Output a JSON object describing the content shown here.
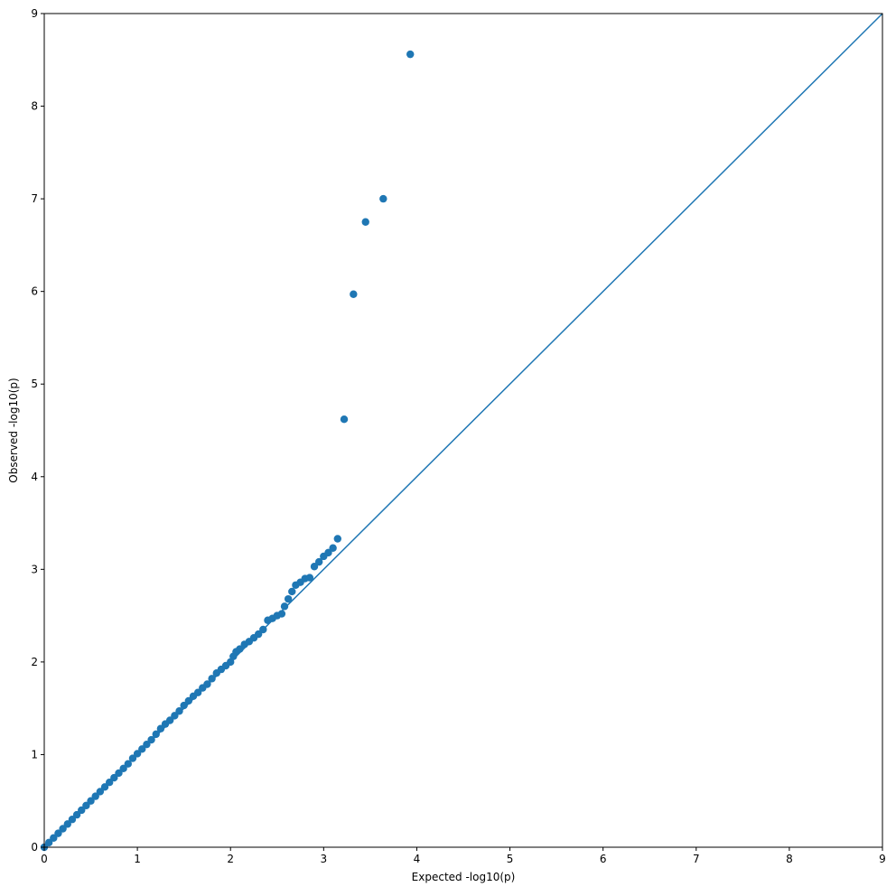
{
  "chart_data": {
    "type": "scatter",
    "title": "",
    "xlabel": "Expected -log10(p)",
    "ylabel": "Observed -log10(p)",
    "xlim": [
      0,
      9
    ],
    "ylim": [
      0,
      9
    ],
    "xticks": [
      "0",
      "1",
      "2",
      "3",
      "4",
      "5",
      "6",
      "7",
      "8",
      "9"
    ],
    "yticks": [
      "0",
      "1",
      "2",
      "3",
      "4",
      "5",
      "6",
      "7",
      "8",
      "9"
    ],
    "grid": false,
    "legend": "none",
    "colors": {
      "points": "#1f77b4",
      "reference_line": "#1f77b4"
    },
    "reference_line": {
      "from": [
        0,
        0
      ],
      "to": [
        9,
        9
      ]
    },
    "points": [
      [
        0.0,
        0.0
      ],
      [
        0.05,
        0.05
      ],
      [
        0.1,
        0.1
      ],
      [
        0.15,
        0.15
      ],
      [
        0.2,
        0.2
      ],
      [
        0.25,
        0.25
      ],
      [
        0.3,
        0.3
      ],
      [
        0.35,
        0.35
      ],
      [
        0.4,
        0.4
      ],
      [
        0.45,
        0.45
      ],
      [
        0.5,
        0.5
      ],
      [
        0.55,
        0.55
      ],
      [
        0.6,
        0.6
      ],
      [
        0.65,
        0.65
      ],
      [
        0.7,
        0.7
      ],
      [
        0.75,
        0.75
      ],
      [
        0.8,
        0.8
      ],
      [
        0.85,
        0.85
      ],
      [
        0.9,
        0.9
      ],
      [
        0.95,
        0.96
      ],
      [
        1.0,
        1.01
      ],
      [
        1.05,
        1.06
      ],
      [
        1.1,
        1.11
      ],
      [
        1.15,
        1.16
      ],
      [
        1.2,
        1.22
      ],
      [
        1.25,
        1.28
      ],
      [
        1.3,
        1.33
      ],
      [
        1.35,
        1.37
      ],
      [
        1.4,
        1.42
      ],
      [
        1.45,
        1.47
      ],
      [
        1.5,
        1.53
      ],
      [
        1.55,
        1.58
      ],
      [
        1.6,
        1.63
      ],
      [
        1.65,
        1.67
      ],
      [
        1.7,
        1.72
      ],
      [
        1.75,
        1.76
      ],
      [
        1.8,
        1.82
      ],
      [
        1.85,
        1.88
      ],
      [
        1.9,
        1.92
      ],
      [
        1.95,
        1.96
      ],
      [
        2.0,
        2.0
      ],
      [
        2.03,
        2.06
      ],
      [
        2.06,
        2.11
      ],
      [
        2.1,
        2.14
      ],
      [
        2.15,
        2.19
      ],
      [
        2.2,
        2.22
      ],
      [
        2.25,
        2.26
      ],
      [
        2.3,
        2.3
      ],
      [
        2.35,
        2.35
      ],
      [
        2.4,
        2.45
      ],
      [
        2.45,
        2.47
      ],
      [
        2.5,
        2.5
      ],
      [
        2.55,
        2.52
      ],
      [
        2.58,
        2.6
      ],
      [
        2.62,
        2.68
      ],
      [
        2.66,
        2.76
      ],
      [
        2.7,
        2.83
      ],
      [
        2.75,
        2.86
      ],
      [
        2.8,
        2.9
      ],
      [
        2.85,
        2.91
      ],
      [
        2.9,
        3.03
      ],
      [
        2.95,
        3.08
      ],
      [
        3.0,
        3.14
      ],
      [
        3.05,
        3.18
      ],
      [
        3.1,
        3.23
      ],
      [
        3.15,
        3.33
      ],
      [
        3.22,
        4.62
      ],
      [
        3.32,
        5.97
      ],
      [
        3.45,
        6.75
      ],
      [
        3.64,
        7.0
      ],
      [
        3.93,
        8.56
      ]
    ]
  }
}
